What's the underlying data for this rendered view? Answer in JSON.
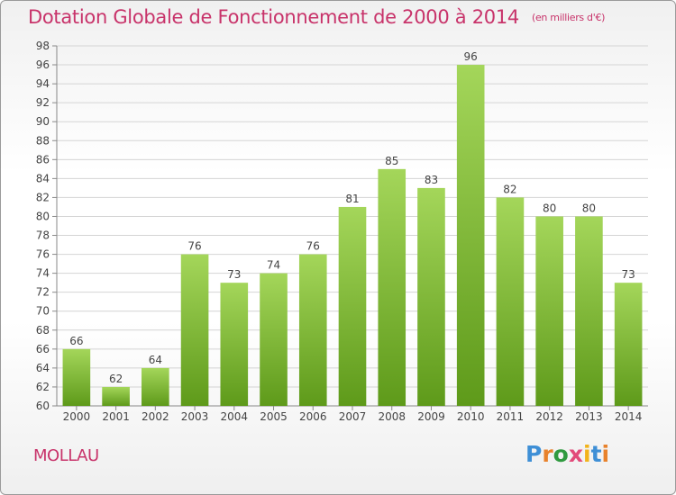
{
  "title": "Dotation Globale de Fonctionnement de 2000 à 2014",
  "title_unit": "(en milliers d'€)",
  "commune": "MOLLAU",
  "logo": {
    "text": "Proxiti",
    "letter_colors": [
      "#3e8fd6",
      "#e8822c",
      "#2f9a3f",
      "#e24a7a",
      "#f2b31b",
      "#3e8fd6",
      "#e8822c"
    ]
  },
  "colors": {
    "title": "#c8336a",
    "bar_light": "#a4d65a",
    "bar_dark": "#5e9a1a",
    "grid": "#d4d4d4"
  },
  "chart_data": {
    "type": "bar",
    "title": "Dotation Globale de Fonctionnement de 2000 à 2014",
    "unit": "(en milliers d'€)",
    "categories": [
      "2000",
      "2001",
      "2002",
      "2003",
      "2004",
      "2005",
      "2006",
      "2007",
      "2008",
      "2009",
      "2010",
      "2011",
      "2012",
      "2013",
      "2014"
    ],
    "values": [
      66,
      62,
      64,
      76,
      73,
      74,
      76,
      81,
      85,
      83,
      96,
      82,
      80,
      80,
      73
    ],
    "xlabel": "",
    "ylabel": "",
    "ylim": [
      60,
      98
    ],
    "yticks": [
      60,
      62,
      64,
      66,
      68,
      70,
      72,
      74,
      76,
      78,
      80,
      82,
      84,
      86,
      88,
      90,
      92,
      94,
      96,
      98
    ],
    "grid": true,
    "legend": "none"
  }
}
